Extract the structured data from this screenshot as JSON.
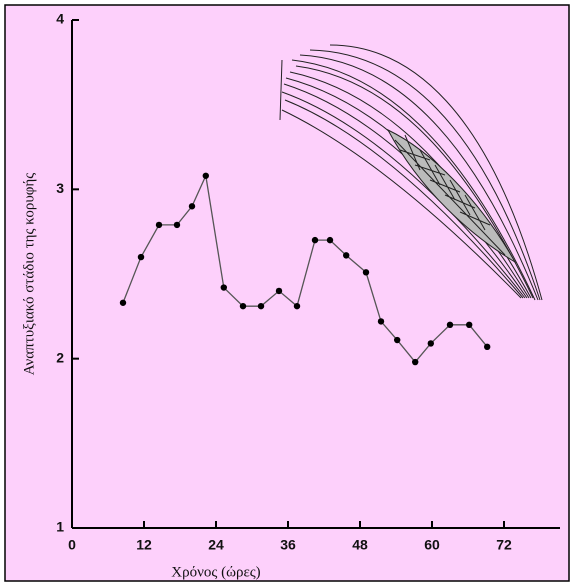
{
  "chart_data": {
    "type": "line",
    "x_label": "Χρόνος (ώρες)",
    "y_label": "Αναπτυξιακό στάδιο της κορυφής",
    "x": [
      8.5,
      11.5,
      14.5,
      17.5,
      20,
      22.3,
      25.3,
      28.5,
      31.5,
      34.5,
      37.5,
      40.5,
      43,
      45.7,
      49,
      51.5,
      54.2,
      57.2,
      59.8,
      63,
      66.2,
      69.2
    ],
    "series": [
      {
        "color": "#555555",
        "values": [
          2.33,
          2.6,
          2.79,
          2.79,
          2.9,
          3.08,
          2.42,
          2.31,
          2.31,
          2.4,
          2.31,
          2.7,
          2.7,
          2.61,
          2.51,
          2.22,
          2.11,
          1.98,
          2.09,
          2.2,
          2.2,
          2.07
        ]
      }
    ],
    "xlim": [
      0,
      81
    ],
    "ylim": [
      1,
      4
    ],
    "xticks": [
      0,
      12,
      24,
      36,
      48,
      60,
      72
    ],
    "yticks": [
      1,
      2,
      3,
      4
    ]
  }
}
